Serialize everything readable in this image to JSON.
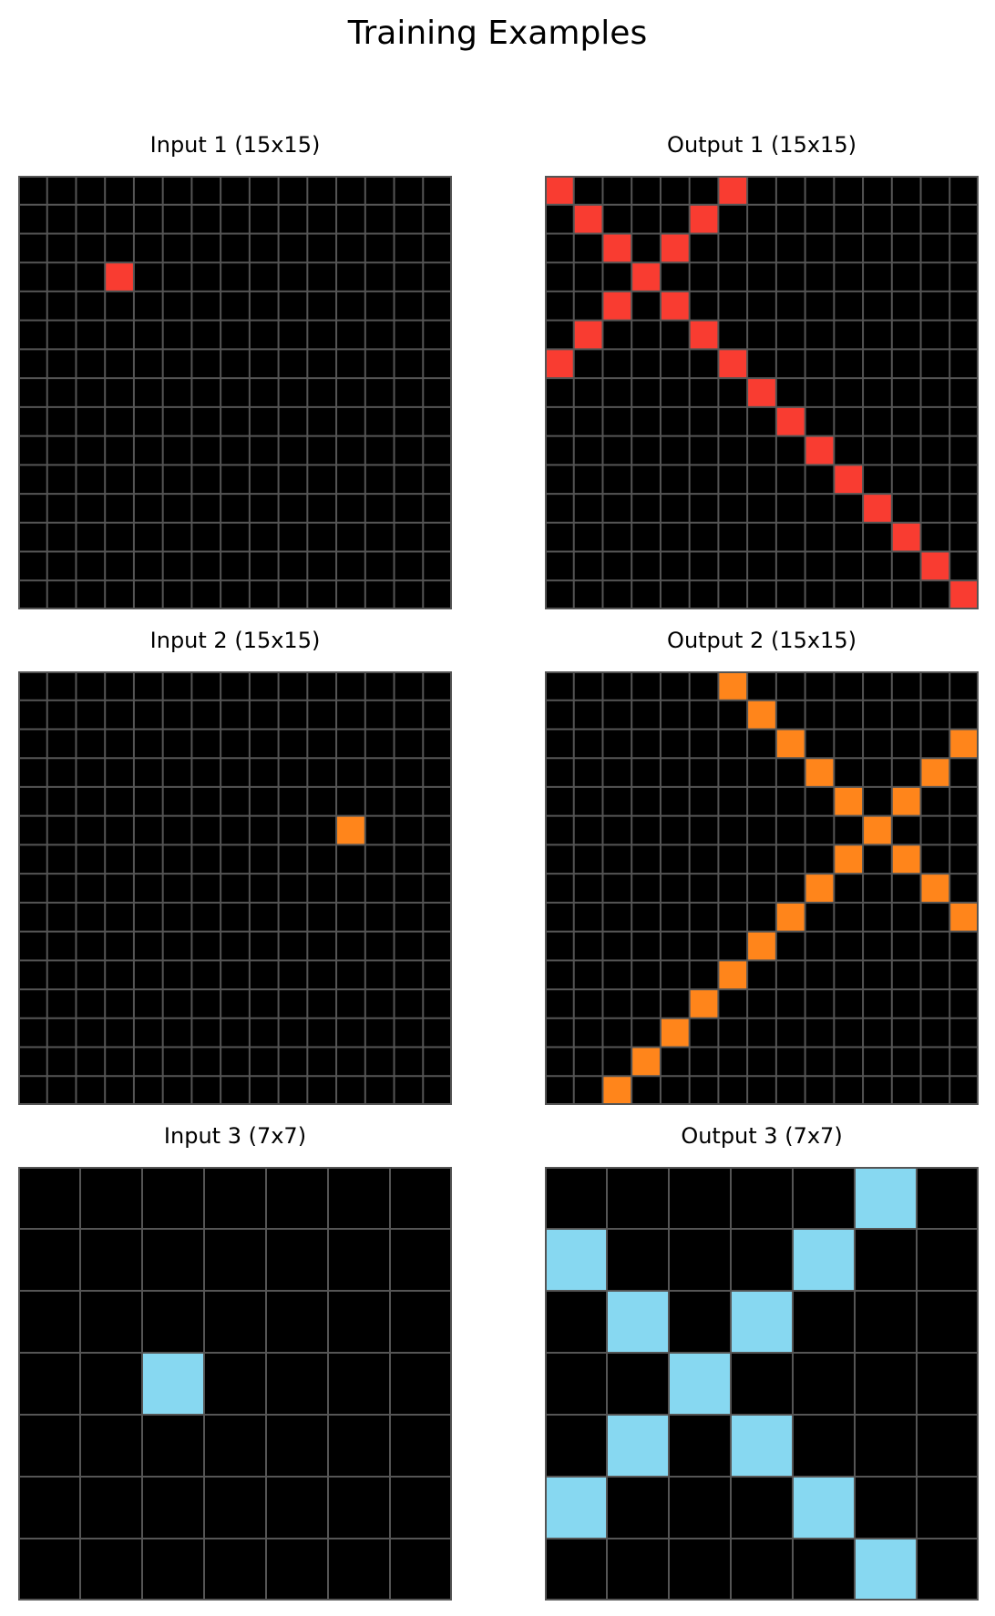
{
  "title": "Training Examples",
  "colors": {
    "background": "#000000",
    "gridline": "#555555",
    "red": "#f93c31",
    "orange": "#ff851b",
    "light_blue": "#87d8f1"
  },
  "examples": [
    {
      "input": {
        "title": "Input 1 (15x15)",
        "rows": 15,
        "cols": 15,
        "cells": [
          {
            "r": 3,
            "c": 3,
            "color": "red"
          }
        ]
      },
      "output": {
        "title": "Output 1 (15x15)",
        "rows": 15,
        "cols": 15,
        "cells": [
          {
            "r": 0,
            "c": 0,
            "color": "red"
          },
          {
            "r": 0,
            "c": 6,
            "color": "red"
          },
          {
            "r": 1,
            "c": 1,
            "color": "red"
          },
          {
            "r": 1,
            "c": 5,
            "color": "red"
          },
          {
            "r": 2,
            "c": 2,
            "color": "red"
          },
          {
            "r": 2,
            "c": 4,
            "color": "red"
          },
          {
            "r": 3,
            "c": 3,
            "color": "red"
          },
          {
            "r": 4,
            "c": 2,
            "color": "red"
          },
          {
            "r": 4,
            "c": 4,
            "color": "red"
          },
          {
            "r": 5,
            "c": 1,
            "color": "red"
          },
          {
            "r": 5,
            "c": 5,
            "color": "red"
          },
          {
            "r": 6,
            "c": 0,
            "color": "red"
          },
          {
            "r": 6,
            "c": 6,
            "color": "red"
          },
          {
            "r": 7,
            "c": 7,
            "color": "red"
          },
          {
            "r": 8,
            "c": 8,
            "color": "red"
          },
          {
            "r": 9,
            "c": 9,
            "color": "red"
          },
          {
            "r": 10,
            "c": 10,
            "color": "red"
          },
          {
            "r": 11,
            "c": 11,
            "color": "red"
          },
          {
            "r": 12,
            "c": 12,
            "color": "red"
          },
          {
            "r": 13,
            "c": 13,
            "color": "red"
          },
          {
            "r": 14,
            "c": 14,
            "color": "red"
          }
        ]
      }
    },
    {
      "input": {
        "title": "Input 2 (15x15)",
        "rows": 15,
        "cols": 15,
        "cells": [
          {
            "r": 5,
            "c": 11,
            "color": "orange"
          }
        ]
      },
      "output": {
        "title": "Output 2 (15x15)",
        "rows": 15,
        "cols": 15,
        "cells": [
          {
            "r": 0,
            "c": 6,
            "color": "orange"
          },
          {
            "r": 1,
            "c": 7,
            "color": "orange"
          },
          {
            "r": 2,
            "c": 8,
            "color": "orange"
          },
          {
            "r": 2,
            "c": 14,
            "color": "orange"
          },
          {
            "r": 3,
            "c": 9,
            "color": "orange"
          },
          {
            "r": 3,
            "c": 13,
            "color": "orange"
          },
          {
            "r": 4,
            "c": 10,
            "color": "orange"
          },
          {
            "r": 4,
            "c": 12,
            "color": "orange"
          },
          {
            "r": 5,
            "c": 11,
            "color": "orange"
          },
          {
            "r": 6,
            "c": 10,
            "color": "orange"
          },
          {
            "r": 6,
            "c": 12,
            "color": "orange"
          },
          {
            "r": 7,
            "c": 9,
            "color": "orange"
          },
          {
            "r": 7,
            "c": 13,
            "color": "orange"
          },
          {
            "r": 8,
            "c": 8,
            "color": "orange"
          },
          {
            "r": 8,
            "c": 14,
            "color": "orange"
          },
          {
            "r": 9,
            "c": 7,
            "color": "orange"
          },
          {
            "r": 10,
            "c": 6,
            "color": "orange"
          },
          {
            "r": 11,
            "c": 5,
            "color": "orange"
          },
          {
            "r": 12,
            "c": 4,
            "color": "orange"
          },
          {
            "r": 13,
            "c": 3,
            "color": "orange"
          },
          {
            "r": 14,
            "c": 2,
            "color": "orange"
          }
        ]
      }
    },
    {
      "input": {
        "title": "Input 3 (7x7)",
        "rows": 7,
        "cols": 7,
        "cells": [
          {
            "r": 3,
            "c": 2,
            "color": "light_blue"
          }
        ]
      },
      "output": {
        "title": "Output 3 (7x7)",
        "rows": 7,
        "cols": 7,
        "cells": [
          {
            "r": 0,
            "c": 5,
            "color": "light_blue"
          },
          {
            "r": 1,
            "c": 0,
            "color": "light_blue"
          },
          {
            "r": 1,
            "c": 4,
            "color": "light_blue"
          },
          {
            "r": 2,
            "c": 1,
            "color": "light_blue"
          },
          {
            "r": 2,
            "c": 3,
            "color": "light_blue"
          },
          {
            "r": 3,
            "c": 2,
            "color": "light_blue"
          },
          {
            "r": 4,
            "c": 1,
            "color": "light_blue"
          },
          {
            "r": 4,
            "c": 3,
            "color": "light_blue"
          },
          {
            "r": 5,
            "c": 0,
            "color": "light_blue"
          },
          {
            "r": 5,
            "c": 4,
            "color": "light_blue"
          },
          {
            "r": 6,
            "c": 5,
            "color": "light_blue"
          }
        ]
      }
    }
  ]
}
